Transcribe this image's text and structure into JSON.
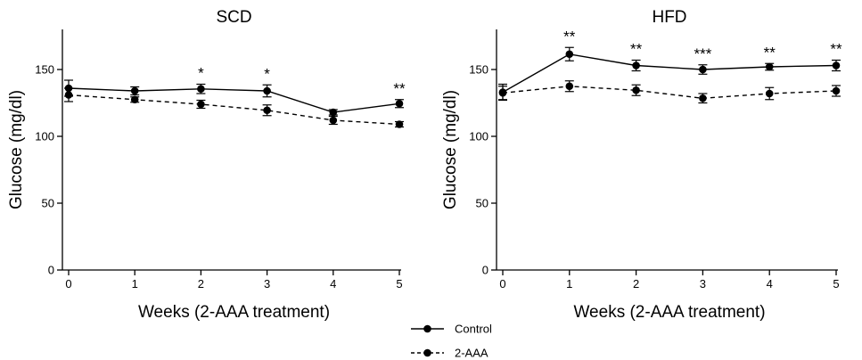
{
  "chart_data": [
    {
      "type": "line",
      "title": "SCD",
      "xlabel": "Weeks (2-AAA treatment)",
      "ylabel": "Glucose (mg/dl)",
      "x": [
        0,
        1,
        2,
        3,
        4,
        5
      ],
      "xlim": [
        0,
        5
      ],
      "ylim": [
        0,
        180
      ],
      "yticks": [
        0,
        50,
        100,
        150
      ],
      "grid": false,
      "series": [
        {
          "name": "Control",
          "style": "solid",
          "values": [
            136,
            134,
            135.5,
            134,
            118,
            124.5
          ],
          "errors": [
            6,
            3,
            3.5,
            4.5,
            2,
            3
          ]
        },
        {
          "name": "2-AAA",
          "style": "dashed",
          "values": [
            131,
            127.5,
            124,
            119.5,
            112,
            109
          ],
          "errors": [
            5,
            2,
            3,
            4,
            3,
            2
          ]
        }
      ],
      "annotations": [
        {
          "x": 2,
          "text": "*"
        },
        {
          "x": 3,
          "text": "*"
        },
        {
          "x": 5,
          "text": "**"
        }
      ]
    },
    {
      "type": "line",
      "title": "HFD",
      "xlabel": "Weeks (2-AAA treatment)",
      "ylabel": "Glucose (mg/dl)",
      "x": [
        0,
        1,
        2,
        3,
        4,
        5
      ],
      "xlim": [
        0,
        5
      ],
      "ylim": [
        0,
        180
      ],
      "yticks": [
        0,
        50,
        100,
        150
      ],
      "grid": false,
      "series": [
        {
          "name": "Control",
          "style": "solid",
          "values": [
            133,
            161.5,
            153,
            150,
            152,
            153
          ],
          "errors": [
            6,
            5,
            4,
            3.5,
            2.5,
            4
          ]
        },
        {
          "name": "2-AAA",
          "style": "dashed",
          "values": [
            132.5,
            137.5,
            134.5,
            128.5,
            132,
            134
          ],
          "errors": [
            5,
            4,
            4,
            3.5,
            4.5,
            4
          ]
        }
      ],
      "annotations": [
        {
          "x": 1,
          "text": "**"
        },
        {
          "x": 2,
          "text": "**"
        },
        {
          "x": 3,
          "text": "***"
        },
        {
          "x": 4,
          "text": "**"
        },
        {
          "x": 5,
          "text": "**"
        }
      ]
    }
  ],
  "legend": {
    "placement": "bottom-center",
    "items": [
      {
        "label": "Control",
        "style": "solid"
      },
      {
        "label": "2-AAA",
        "style": "dashed"
      }
    ]
  }
}
